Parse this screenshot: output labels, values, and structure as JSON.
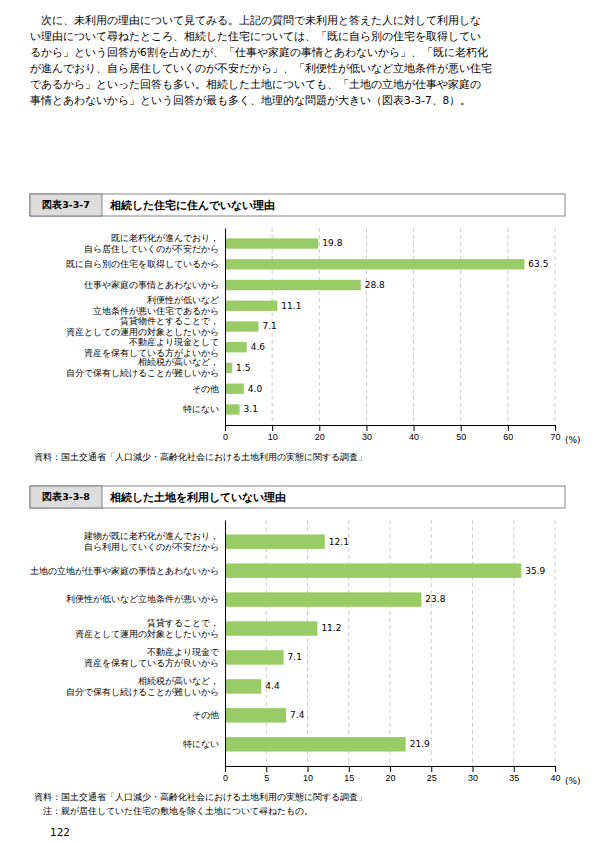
{
  "body_text": [
    "　次に、未利用の理由について見てみる。上記の質問で未利用と答えた人に対して利用しな",
    "い理由について尋ねたところ、相続した住宅については、「既に自ら別の住宅を取得してい",
    "るから」という回答が6割を占めたが、「仕事や家庭の事情とあわないから」、「既に老朽化",
    "が進んでおり、自ら居住していくのが不安だから」、「利便性が低いなど立地条件が悪い住宅",
    "であるから」といった回答も多い。相続した土地についても、「土地の立地が仕事や家庭の",
    "事情とあわないから」という回答が最も多く、地理的な問題が大きい（図表3-3-7、8）。"
  ],
  "page_number": "122",
  "chart_data": [
    {
      "type": "bar",
      "orientation": "horizontal",
      "figure_label": "図表3-3-7",
      "title": "相続した住宅に住んでいない理由",
      "source": "資料：国土交通省「人口減少・高齢化社会における土地利用の実態に関する調査」",
      "x_label": "(%)",
      "categories": [
        "既に老朽化が進んでおり，\n自ら居住していくのが不安だから",
        "既に自ら別の住宅を取得しているから",
        "仕事や家庭の事情とあわないから",
        "利便性が低いなど\n立地条件が悪い住宅であるから",
        "賃貸物件とすることで，\n資産としての運用の対象としたいから",
        "不動産より現金として\n資産を保有している方がよいから",
        "相続税が高いなど，\n自分で保有し続けることが難しいから",
        "その他",
        "特にない"
      ],
      "values": [
        19.8,
        63.5,
        28.8,
        11.1,
        7.1,
        4.6,
        1.5,
        4.0,
        3.1
      ],
      "value_labels": [
        "19.8",
        "63.5",
        "28.8",
        "11.1",
        "7.1",
        "4.6",
        "1.5",
        "4.0",
        "3.1"
      ],
      "data_labels": true,
      "color": "#99cc66",
      "xlim": [
        0,
        70
      ],
      "xticks": [
        0,
        10,
        20,
        30,
        40,
        50,
        60,
        70
      ],
      "grid": true
    },
    {
      "type": "bar",
      "orientation": "horizontal",
      "figure_label": "図表3-3-8",
      "title": "相続した土地を利用していない理由",
      "source": "資料：国土交通省「人口減少・高齢化社会における土地利用の実態に関する調査」",
      "note": "注：親が居住していた住宅の敷地を除く土地について尋ねたもの。",
      "x_label": "(%)",
      "categories": [
        "建物が既に老朽化が進んでおり，\n自ら利用していくのが不安だから",
        "土地の立地が仕事や家庭の事情とあわないから",
        "利便性が低いなど立地条件が悪いから",
        "賃貸することで，\n資産として運用の対象としたいから",
        "不動産より現金で\n資産を保有している方が良いから",
        "相続税が高いなど，\n自分で保有し続けることが難しいから",
        "その他",
        "特にない"
      ],
      "values": [
        12.1,
        35.9,
        23.8,
        11.2,
        7.1,
        4.4,
        7.4,
        21.9
      ],
      "value_labels": [
        "12.1",
        "35.9",
        "23.8",
        "11.2",
        "7.1",
        "4.4",
        "7.4",
        "21.9"
      ],
      "data_labels": true,
      "color": "#99cc66",
      "xlim": [
        0,
        40
      ],
      "xticks": [
        0,
        5,
        10,
        15,
        20,
        25,
        30,
        35,
        40
      ],
      "grid": true
    }
  ]
}
